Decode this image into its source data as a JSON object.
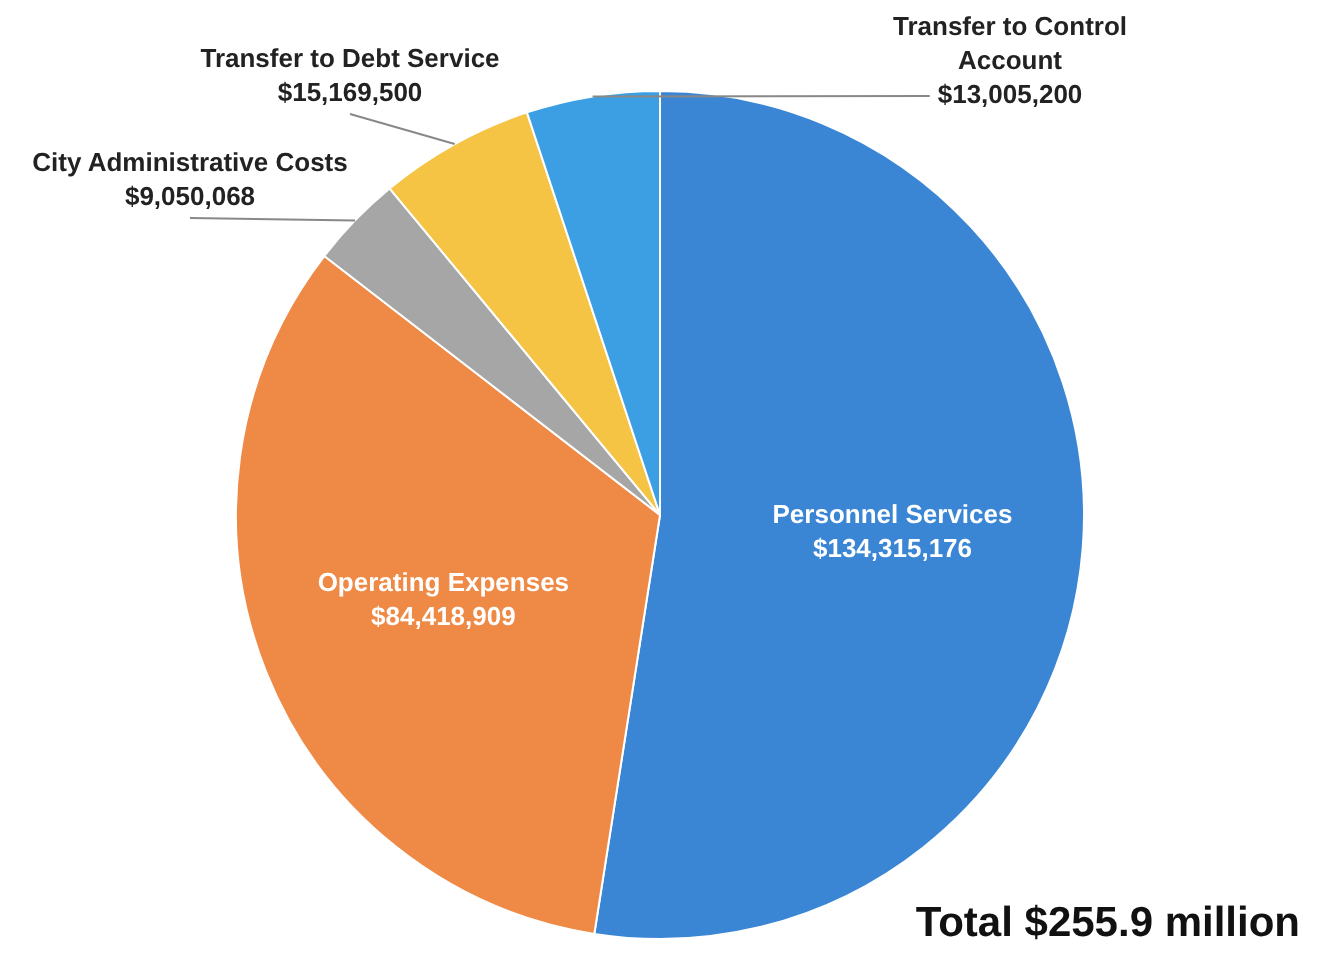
{
  "chart_data": {
    "type": "pie",
    "categories": [
      "Personnel Services",
      "Operating Expenses",
      "City Administrative Costs",
      "Transfer to Debt Service",
      "Transfer to Control Account"
    ],
    "values": [
      134315176,
      84418909,
      9050068,
      15169500,
      13005200
    ],
    "colors": [
      "#3a86d4",
      "#ee8a46",
      "#a6a6a6",
      "#f5c445",
      "#3c9fe4"
    ],
    "value_labels": [
      "$134,315,176",
      "$84,418,909",
      "$9,050,068",
      "$15,169,500",
      "$13,005,200"
    ],
    "annotations": [
      "Total $255.9 million"
    ],
    "legend": false
  }
}
